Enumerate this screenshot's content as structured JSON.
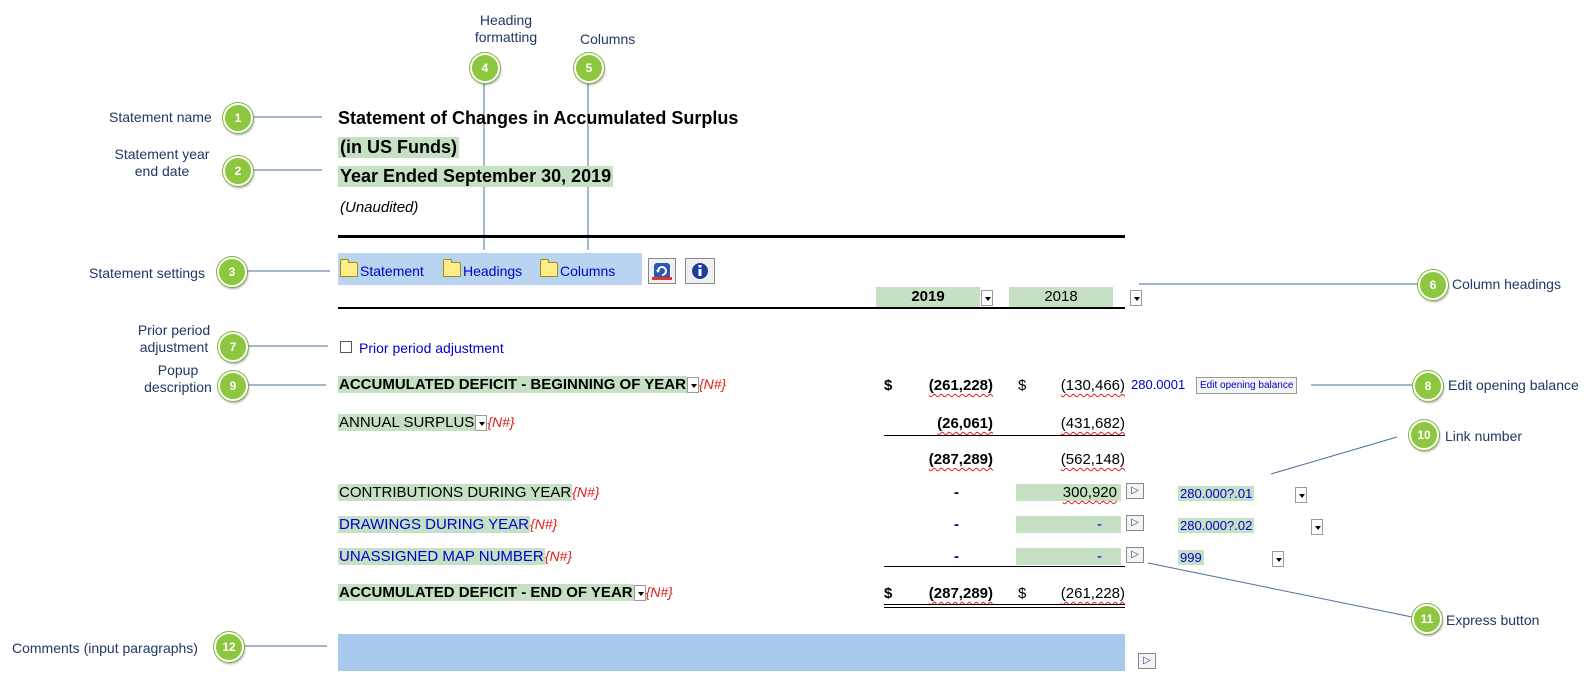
{
  "callouts": {
    "c1": {
      "num": "1",
      "label": "Statement name"
    },
    "c2": {
      "num": "2",
      "label": "Statement year end date"
    },
    "c3": {
      "num": "3",
      "label": "Statement settings"
    },
    "c4": {
      "num": "4",
      "label": "Heading formatting"
    },
    "c5": {
      "num": "5",
      "label": "Columns"
    },
    "c6": {
      "num": "6",
      "label": "Column headings"
    },
    "c7": {
      "num": "7",
      "label": "Prior period adjustment"
    },
    "c8": {
      "num": "8",
      "label": "Edit opening balance"
    },
    "c9": {
      "num": "9",
      "label": "Popup description"
    },
    "c10": {
      "num": "10",
      "label": "Link number"
    },
    "c11": {
      "num": "11",
      "label": "Express button"
    },
    "c12": {
      "num": "12",
      "label": "Comments (input paragraphs)"
    }
  },
  "statement": {
    "title": "Statement of Changes in Accumulated Surplus",
    "currency": "(in US Funds)",
    "period": "Year Ended September 30, 2019",
    "status": "(Unaudited)"
  },
  "toolbar": {
    "statement": "Statement",
    "headings": "Headings",
    "columns": "Columns"
  },
  "columns": {
    "col1": "2019",
    "col2": "2018"
  },
  "prior_period": {
    "label": "Prior period adjustment"
  },
  "rows": {
    "opening": {
      "label": "ACCUMULATED DEFICIT - BEGINNING OF YEAR",
      "tag": "{N#}",
      "cur1": "$",
      "val1": "(261,228)",
      "cur2": "$",
      "val2": "(130,466)",
      "link": "280.0001",
      "edit_btn": "Edit opening balance"
    },
    "surplus": {
      "label": "ANNUAL SURPLUS",
      "tag": "{N#}",
      "val1": "(26,061)",
      "val2": "(431,682)"
    },
    "subtotal": {
      "val1": "(287,289)",
      "val2": "(562,148)"
    },
    "contributions": {
      "label": "CONTRIBUTIONS DURING YEAR",
      "tag": "{N#}",
      "val1": "-",
      "val2": "300,920",
      "link": "280.000?.01"
    },
    "drawings": {
      "label": "DRAWINGS DURING YEAR",
      "tag": "{N#}",
      "val1": "-",
      "val2": "-",
      "link": "280.000?.02"
    },
    "unassigned": {
      "label": "UNASSIGNED MAP NUMBER",
      "tag": "{N#}",
      "val1": "-",
      "val2": "-",
      "link": "999"
    },
    "closing": {
      "label": "ACCUMULATED DEFICIT - END OF YEAR",
      "tag": "{N#}",
      "cur1": "$",
      "val1": "(287,289)",
      "cur2": "$",
      "val2": "(261,228)"
    }
  },
  "colors": {
    "badge": "#8dc63f",
    "highlight": "#c6e0c4",
    "comment_box": "#a9c8ee",
    "settings_bar": "#b8d4f0",
    "callout_text": "#1f3864"
  }
}
